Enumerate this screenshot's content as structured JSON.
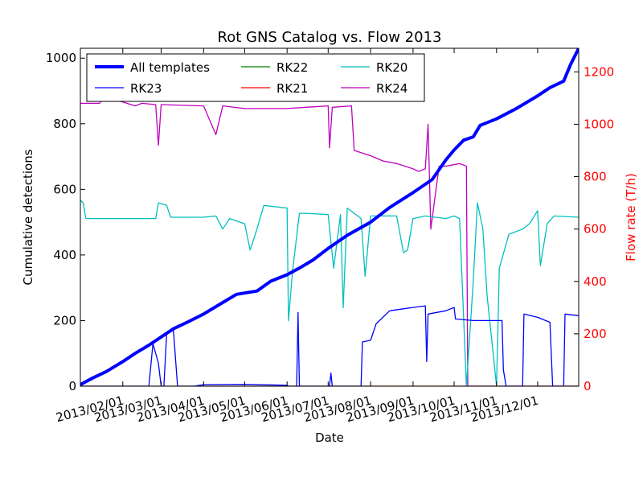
{
  "chart_data": {
    "type": "line",
    "title": "Rot GNS Catalog vs. Flow 2013",
    "xlabel": "Date",
    "ylabel_left": "Cumulative detections",
    "ylabel_right": "Flow rate (T/h)",
    "x_ticks": [
      "2013/02/01",
      "2013/03/01",
      "2013/04/01",
      "2013/05/01",
      "2013/06/01",
      "2013/07/01",
      "2013/08/01",
      "2013/09/01",
      "2013/10/01",
      "2013/11/01",
      "2013/12/01"
    ],
    "xlim": [
      "2013-01-01",
      "2013-12-31"
    ],
    "ylim_left": [
      0,
      1030
    ],
    "ylim_right": [
      0,
      1290
    ],
    "yticks_left": [
      0,
      200,
      400,
      600,
      800,
      1000
    ],
    "yticks_right": [
      0,
      200,
      400,
      600,
      800,
      1000,
      1200
    ],
    "legend": {
      "position": "top-left",
      "columns": [
        [
          "All templates",
          "RK23"
        ],
        [
          "RK22",
          "RK21"
        ],
        [
          "RK20",
          "RK24"
        ]
      ]
    },
    "colors": {
      "All templates": "#0000ff",
      "RK23": "#0000ff",
      "RK22": "#008000",
      "RK21": "#ff0000",
      "RK20": "#00bfbf",
      "RK24": "#bf00bf",
      "right_axis": "#ff0000"
    },
    "series": [
      {
        "name": "All templates",
        "axis": "left",
        "values": [
          [
            "2013-01-01",
            5
          ],
          [
            "2013-01-10",
            25
          ],
          [
            "2013-01-20",
            45
          ],
          [
            "2013-02-01",
            75
          ],
          [
            "2013-02-10",
            100
          ],
          [
            "2013-02-20",
            125
          ],
          [
            "2013-03-01",
            150
          ],
          [
            "2013-03-10",
            175
          ],
          [
            "2013-03-20",
            195
          ],
          [
            "2013-04-01",
            220
          ],
          [
            "2013-04-15",
            255
          ],
          [
            "2013-04-25",
            280
          ],
          [
            "2013-05-10",
            290
          ],
          [
            "2013-05-20",
            320
          ],
          [
            "2013-06-01",
            340
          ],
          [
            "2013-06-10",
            360
          ],
          [
            "2013-06-20",
            385
          ],
          [
            "2013-07-01",
            420
          ],
          [
            "2013-07-15",
            460
          ],
          [
            "2013-08-01",
            500
          ],
          [
            "2013-08-15",
            545
          ],
          [
            "2013-09-01",
            590
          ],
          [
            "2013-09-15",
            630
          ],
          [
            "2013-09-25",
            690
          ],
          [
            "2013-10-01",
            720
          ],
          [
            "2013-10-08",
            750
          ],
          [
            "2013-10-15",
            760
          ],
          [
            "2013-10-20",
            795
          ],
          [
            "2013-11-01",
            815
          ],
          [
            "2013-11-15",
            845
          ],
          [
            "2013-12-01",
            885
          ],
          [
            "2013-12-10",
            910
          ],
          [
            "2013-12-20",
            930
          ],
          [
            "2013-12-25",
            980
          ],
          [
            "2013-12-31",
            1030
          ]
        ]
      },
      {
        "name": "RK23",
        "axis": "left",
        "values": [
          [
            "2013-01-01",
            0
          ],
          [
            "2013-02-20",
            0
          ],
          [
            "2013-02-23",
            130
          ],
          [
            "2013-02-27",
            70
          ],
          [
            "2013-03-01",
            0
          ],
          [
            "2013-03-03",
            0
          ],
          [
            "2013-03-05",
            160
          ],
          [
            "2013-03-10",
            170
          ],
          [
            "2013-03-13",
            0
          ],
          [
            "2013-03-25",
            0
          ],
          [
            "2013-04-01",
            5
          ],
          [
            "2013-05-01",
            6
          ],
          [
            "2013-06-01",
            3
          ],
          [
            "2013-06-02",
            0
          ],
          [
            "2013-06-08",
            0
          ],
          [
            "2013-06-09",
            225
          ],
          [
            "2013-06-10",
            0
          ],
          [
            "2013-07-02",
            0
          ],
          [
            "2013-07-03",
            40
          ],
          [
            "2013-07-04",
            0
          ],
          [
            "2013-07-25",
            0
          ],
          [
            "2013-07-26",
            135
          ],
          [
            "2013-08-01",
            140
          ],
          [
            "2013-08-05",
            190
          ],
          [
            "2013-08-15",
            230
          ],
          [
            "2013-09-01",
            240
          ],
          [
            "2013-09-10",
            245
          ],
          [
            "2013-09-11",
            75
          ],
          [
            "2013-09-12",
            220
          ],
          [
            "2013-09-25",
            230
          ],
          [
            "2013-10-01",
            240
          ],
          [
            "2013-10-02",
            205
          ],
          [
            "2013-10-15",
            200
          ],
          [
            "2013-11-01",
            200
          ],
          [
            "2013-11-05",
            200
          ],
          [
            "2013-11-06",
            50
          ],
          [
            "2013-11-08",
            0
          ],
          [
            "2013-11-20",
            0
          ],
          [
            "2013-11-21",
            220
          ],
          [
            "2013-12-01",
            210
          ],
          [
            "2013-12-10",
            195
          ],
          [
            "2013-12-12",
            0
          ],
          [
            "2013-12-20",
            0
          ],
          [
            "2013-12-21",
            220
          ],
          [
            "2013-12-31",
            215
          ]
        ]
      },
      {
        "name": "RK22",
        "axis": "right",
        "values": [
          [
            "2013-01-01",
            0
          ],
          [
            "2013-12-31",
            0
          ]
        ]
      },
      {
        "name": "RK21",
        "axis": "right",
        "values": [
          [
            "2013-01-01",
            0
          ],
          [
            "2013-12-31",
            0
          ]
        ]
      },
      {
        "name": "RK20",
        "axis": "right",
        "values": [
          [
            "2013-01-01",
            710
          ],
          [
            "2013-01-03",
            700
          ],
          [
            "2013-01-05",
            640
          ],
          [
            "2013-02-01",
            640
          ],
          [
            "2013-02-25",
            640
          ],
          [
            "2013-02-27",
            700
          ],
          [
            "2013-03-05",
            690
          ],
          [
            "2013-03-08",
            645
          ],
          [
            "2013-04-01",
            645
          ],
          [
            "2013-04-10",
            650
          ],
          [
            "2013-04-15",
            600
          ],
          [
            "2013-04-20",
            640
          ],
          [
            "2013-05-01",
            620
          ],
          [
            "2013-05-05",
            520
          ],
          [
            "2013-05-10",
            600
          ],
          [
            "2013-05-15",
            690
          ],
          [
            "2013-06-01",
            680
          ],
          [
            "2013-06-02",
            250
          ],
          [
            "2013-06-05",
            440
          ],
          [
            "2013-06-10",
            660
          ],
          [
            "2013-06-15",
            660
          ],
          [
            "2013-07-01",
            655
          ],
          [
            "2013-07-05",
            450
          ],
          [
            "2013-07-10",
            655
          ],
          [
            "2013-07-12",
            300
          ],
          [
            "2013-07-15",
            680
          ],
          [
            "2013-07-25",
            640
          ],
          [
            "2013-07-28",
            420
          ],
          [
            "2013-08-01",
            650
          ],
          [
            "2013-08-20",
            650
          ],
          [
            "2013-08-25",
            510
          ],
          [
            "2013-08-28",
            520
          ],
          [
            "2013-09-01",
            640
          ],
          [
            "2013-09-10",
            650
          ],
          [
            "2013-09-25",
            640
          ],
          [
            "2013-10-01",
            650
          ],
          [
            "2013-10-05",
            640
          ],
          [
            "2013-10-10",
            0
          ],
          [
            "2013-10-15",
            400
          ],
          [
            "2013-10-18",
            700
          ],
          [
            "2013-10-22",
            600
          ],
          [
            "2013-10-25",
            350
          ],
          [
            "2013-11-01",
            0
          ],
          [
            "2013-11-03",
            450
          ],
          [
            "2013-11-10",
            580
          ],
          [
            "2013-11-20",
            600
          ],
          [
            "2013-11-25",
            620
          ],
          [
            "2013-12-01",
            670
          ],
          [
            "2013-12-03",
            460
          ],
          [
            "2013-12-08",
            620
          ],
          [
            "2013-12-13",
            650
          ],
          [
            "2013-12-31",
            645
          ]
        ]
      },
      {
        "name": "RK24",
        "axis": "right",
        "values": [
          [
            "2013-01-01",
            1080
          ],
          [
            "2013-01-15",
            1080
          ],
          [
            "2013-01-18",
            1100
          ],
          [
            "2013-02-01",
            1085
          ],
          [
            "2013-02-10",
            1070
          ],
          [
            "2013-02-15",
            1080
          ],
          [
            "2013-02-25",
            1075
          ],
          [
            "2013-02-27",
            920
          ],
          [
            "2013-03-01",
            1075
          ],
          [
            "2013-04-01",
            1070
          ],
          [
            "2013-04-10",
            960
          ],
          [
            "2013-04-15",
            1070
          ],
          [
            "2013-05-01",
            1060
          ],
          [
            "2013-06-01",
            1060
          ],
          [
            "2013-06-15",
            1065
          ],
          [
            "2013-07-01",
            1070
          ],
          [
            "2013-07-02",
            910
          ],
          [
            "2013-07-04",
            1065
          ],
          [
            "2013-07-18",
            1070
          ],
          [
            "2013-07-20",
            900
          ],
          [
            "2013-08-01",
            880
          ],
          [
            "2013-08-10",
            860
          ],
          [
            "2013-08-20",
            850
          ],
          [
            "2013-09-01",
            830
          ],
          [
            "2013-09-05",
            820
          ],
          [
            "2013-09-10",
            830
          ],
          [
            "2013-09-12",
            1000
          ],
          [
            "2013-09-14",
            600
          ],
          [
            "2013-09-20",
            840
          ],
          [
            "2013-09-25",
            840
          ],
          [
            "2013-10-05",
            850
          ],
          [
            "2013-10-10",
            840
          ],
          [
            "2013-10-11",
            0
          ],
          [
            "2013-12-31",
            0
          ]
        ]
      }
    ]
  }
}
